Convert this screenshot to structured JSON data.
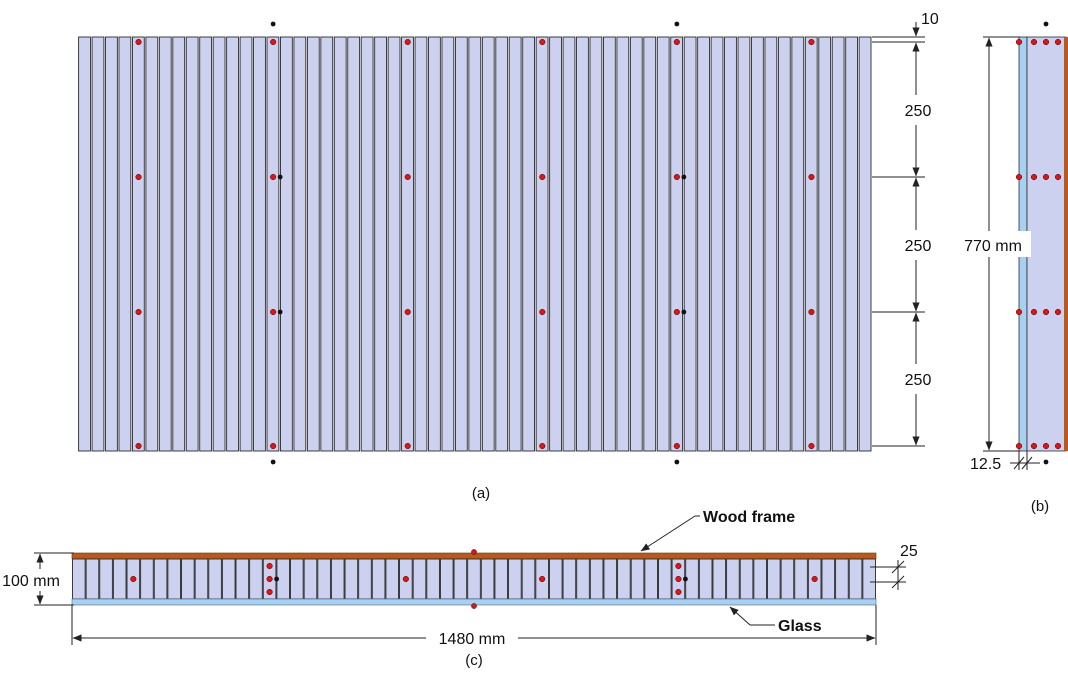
{
  "colors": {
    "bar_fill": "#ccd1f0",
    "bar_stroke": "#2b2b2b",
    "sensor_red": "#d81818",
    "sensor_black": "#111111",
    "wood": "#b85a1e",
    "glass": "#a8d0f0",
    "line": "#222222"
  },
  "views": {
    "a": {
      "caption": "(a)",
      "dims": {
        "top_gap": "10",
        "spacing_1": "250",
        "spacing_2": "250",
        "spacing_3": "250"
      }
    },
    "b": {
      "caption": "(b)",
      "dims": {
        "height": "770  mm",
        "thickness": "12.5"
      }
    },
    "c": {
      "caption": "(c)",
      "dims": {
        "depth": "100 mm",
        "length": "1480  mm",
        "bar_width": "25"
      },
      "labels": {
        "wood": "Wood frame",
        "glass": "Glass"
      }
    }
  }
}
